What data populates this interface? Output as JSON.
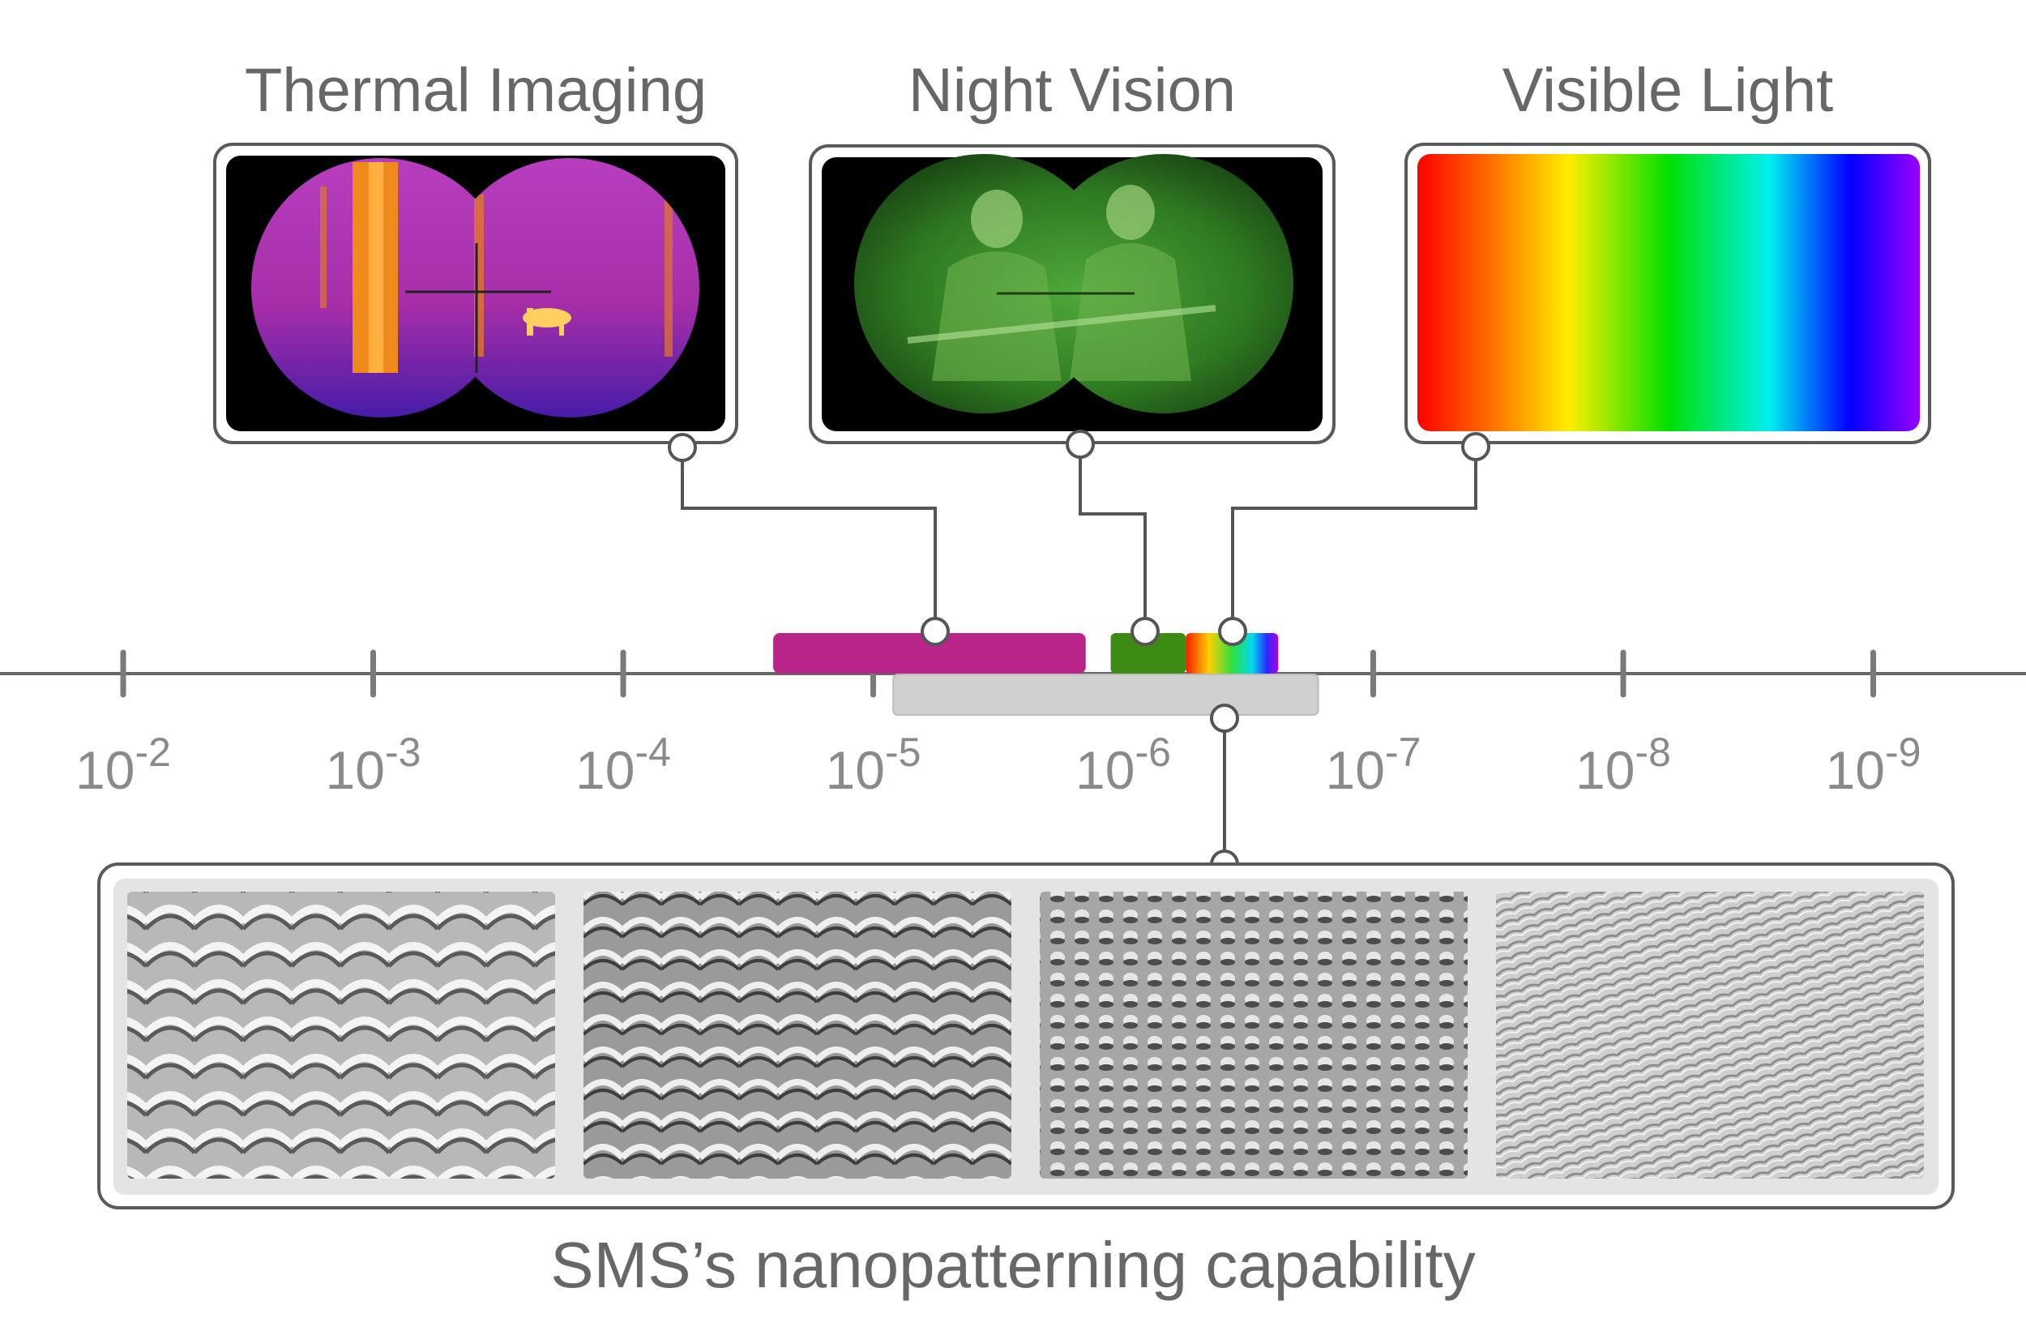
{
  "panels": [
    {
      "title": "Thermal Imaging",
      "icon": "thermal-binocular-view-image"
    },
    {
      "title": "Night Vision",
      "icon": "night-vision-binocular-view-image"
    },
    {
      "title": "Visible Light",
      "icon": "visible-spectrum-gradient-image"
    }
  ],
  "axis": {
    "ticks": [
      {
        "base": "10",
        "exp": "-2"
      },
      {
        "base": "10",
        "exp": "-3"
      },
      {
        "base": "10",
        "exp": "-4"
      },
      {
        "base": "10",
        "exp": "-5"
      },
      {
        "base": "10",
        "exp": "-6"
      },
      {
        "base": "10",
        "exp": "-7"
      },
      {
        "base": "10",
        "exp": "-8"
      },
      {
        "base": "10",
        "exp": "-9"
      }
    ]
  },
  "bands": {
    "thermal": {
      "from_exp": -4.6,
      "to_exp": -5.85,
      "color": "#b82487"
    },
    "night_vision": {
      "from_exp": -5.95,
      "to_exp": -6.25,
      "color": "#3d8a14"
    },
    "visible": {
      "from_exp": -6.25,
      "to_exp": -6.62
    },
    "nanopatterning": {
      "from_exp": -5.08,
      "to_exp": -6.78,
      "color": "#d0d0d0"
    }
  },
  "colors": {
    "line": "#555555",
    "tick": "#7a7a7a",
    "text": "#676767",
    "thermal_purple": "#b82487",
    "night_green": "#3d8a14"
  },
  "bottom": {
    "caption": "SMS’s nanopatterning capability",
    "images": [
      "sem-image-1",
      "sem-image-2",
      "sem-image-3",
      "sem-image-4"
    ]
  }
}
